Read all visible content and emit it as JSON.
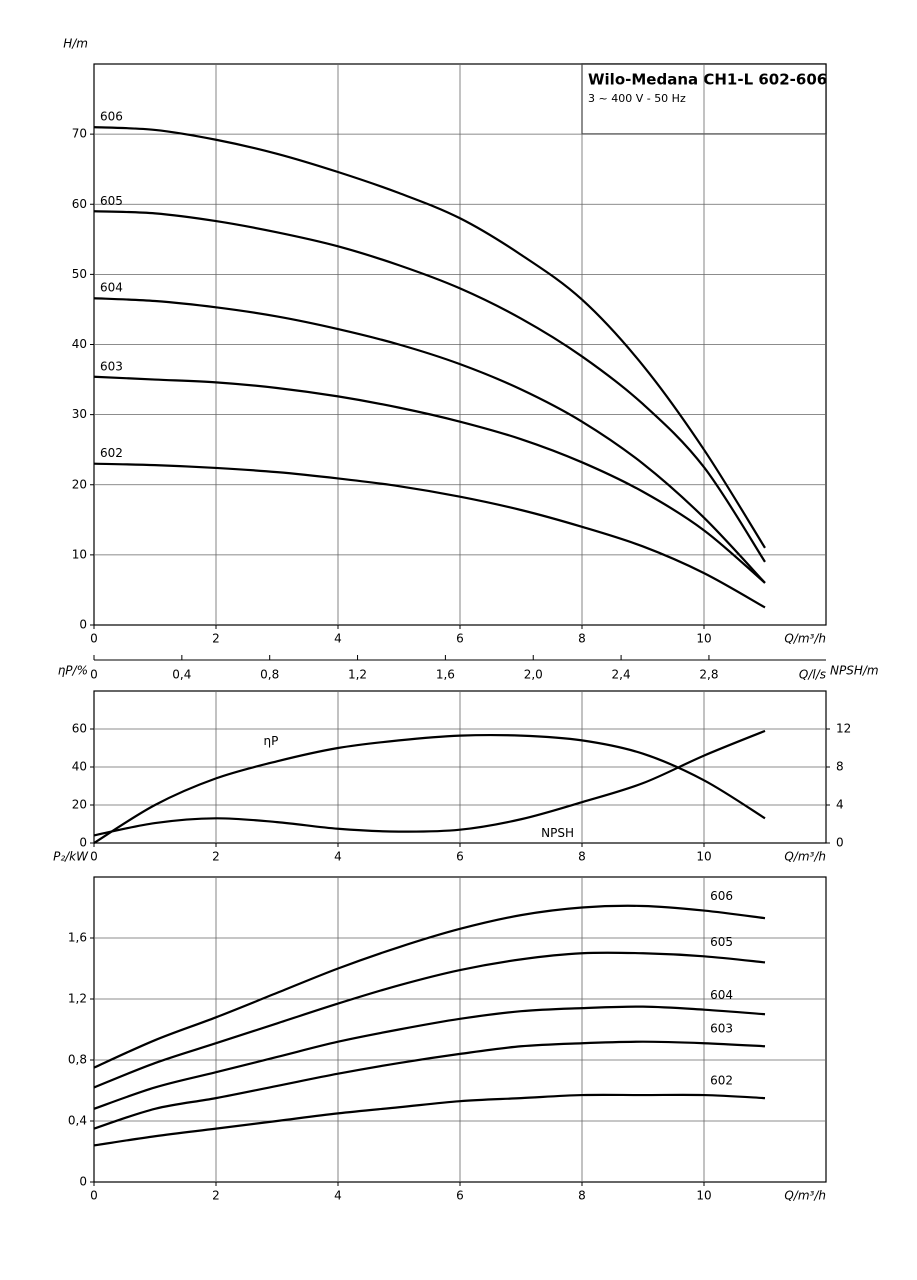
{
  "chart_data": [
    {
      "type": "line",
      "title": "Wilo-Medana CH1-L 602-606",
      "subtitle": "3 ~ 400 V - 50 Hz",
      "x_label": "Q/m³/h",
      "y_label": "H/m",
      "x2_label": "Q/l/s",
      "grid": true,
      "xlim": [
        0,
        12
      ],
      "xticks": [
        0,
        2,
        4,
        6,
        8,
        10
      ],
      "ylim": [
        0,
        80
      ],
      "yticks": [
        0,
        10,
        20,
        30,
        40,
        50,
        60,
        70
      ],
      "x2lim": [
        0,
        3.333
      ],
      "x2ticks": [
        0,
        {
          "value": 0.4,
          "label": "0,4"
        },
        {
          "value": 0.8,
          "label": "0,8"
        },
        {
          "value": 1.2,
          "label": "1,2"
        },
        {
          "value": 1.6,
          "label": "1,6"
        },
        {
          "value": 2.0,
          "label": "2,0"
        },
        {
          "value": 2.4,
          "label": "2,4"
        },
        {
          "value": 2.8,
          "label": "2,8"
        }
      ],
      "x": [
        0,
        1,
        2,
        3,
        4,
        5,
        6,
        7,
        8,
        9,
        10,
        11
      ],
      "series": [
        {
          "name": "606",
          "color": "#000000",
          "values": [
            71,
            70.6,
            69.2,
            67.2,
            64.6,
            61.6,
            58,
            52.8,
            46.4,
            37,
            25,
            11
          ]
        },
        {
          "name": "605",
          "color": "#000000",
          "values": [
            59,
            58.7,
            57.6,
            56,
            54,
            51.3,
            48,
            43.7,
            38.3,
            31.5,
            22.5,
            9
          ]
        },
        {
          "name": "604",
          "color": "#000000",
          "values": [
            46.6,
            46.2,
            45.3,
            44,
            42.2,
            40,
            37.2,
            33.6,
            29,
            23,
            15.3,
            6
          ]
        },
        {
          "name": "603",
          "color": "#000000",
          "values": [
            35.4,
            35,
            34.6,
            33.8,
            32.6,
            31,
            29,
            26.5,
            23.2,
            19,
            13.5,
            6
          ]
        },
        {
          "name": "602",
          "color": "#000000",
          "values": [
            23,
            22.8,
            22.4,
            21.8,
            20.9,
            19.8,
            18.3,
            16.4,
            14,
            11.2,
            7.4,
            2.5
          ]
        }
      ]
    },
    {
      "type": "line",
      "x_label": "Q/m³/h",
      "y_label": "ηP/%",
      "y2_label": "NPSH/m",
      "grid": true,
      "xlim": [
        0,
        12
      ],
      "xticks": [
        0,
        2,
        4,
        6,
        8,
        10
      ],
      "ylim": [
        0,
        80
      ],
      "yticks": [
        0,
        20,
        40,
        60
      ],
      "y2lim": [
        0,
        16
      ],
      "y2ticks": [
        0,
        4,
        8,
        12
      ],
      "x": [
        0,
        1,
        2,
        3,
        4,
        5,
        6,
        7,
        8,
        9,
        10,
        11
      ],
      "series": [
        {
          "name": "ηP",
          "color": "#000000",
          "values": [
            0,
            20,
            34,
            43,
            50,
            54,
            56.5,
            56.5,
            54,
            47,
            33,
            13
          ]
        },
        {
          "name": "NPSH",
          "color": "#000000",
          "axis": "y2",
          "values": [
            0.8,
            2.1,
            2.6,
            2.2,
            1.5,
            1.2,
            1.4,
            2.5,
            4.3,
            6.3,
            9.2,
            11.8
          ]
        }
      ]
    },
    {
      "type": "line",
      "x_label": "Q/m³/h",
      "y_label": "P₂/kW",
      "grid": true,
      "xlim": [
        0,
        12
      ],
      "xticks": [
        0,
        2,
        4,
        6,
        8,
        10
      ],
      "ylim": [
        0,
        2.0
      ],
      "yticks": [
        0,
        {
          "value": 0.4,
          "label": "0,4"
        },
        {
          "value": 0.8,
          "label": "0,8"
        },
        {
          "value": 1.2,
          "label": "1,2"
        },
        {
          "value": 1.6,
          "label": "1,6"
        }
      ],
      "x": [
        0,
        1,
        2,
        3,
        4,
        5,
        6,
        7,
        8,
        9,
        10,
        11
      ],
      "series": [
        {
          "name": "606",
          "color": "#000000",
          "values": [
            0.75,
            0.93,
            1.08,
            1.24,
            1.4,
            1.54,
            1.66,
            1.75,
            1.8,
            1.81,
            1.78,
            1.73
          ]
        },
        {
          "name": "605",
          "color": "#000000",
          "values": [
            0.62,
            0.78,
            0.91,
            1.04,
            1.17,
            1.29,
            1.39,
            1.46,
            1.5,
            1.5,
            1.48,
            1.44
          ]
        },
        {
          "name": "604",
          "color": "#000000",
          "values": [
            0.48,
            0.62,
            0.72,
            0.82,
            0.92,
            1.0,
            1.07,
            1.12,
            1.14,
            1.15,
            1.13,
            1.1
          ]
        },
        {
          "name": "603",
          "color": "#000000",
          "values": [
            0.35,
            0.48,
            0.55,
            0.63,
            0.71,
            0.78,
            0.84,
            0.89,
            0.91,
            0.92,
            0.91,
            0.89
          ]
        },
        {
          "name": "602",
          "color": "#000000",
          "values": [
            0.24,
            0.3,
            0.35,
            0.4,
            0.45,
            0.49,
            0.53,
            0.55,
            0.57,
            0.57,
            0.57,
            0.55
          ]
        }
      ]
    }
  ]
}
